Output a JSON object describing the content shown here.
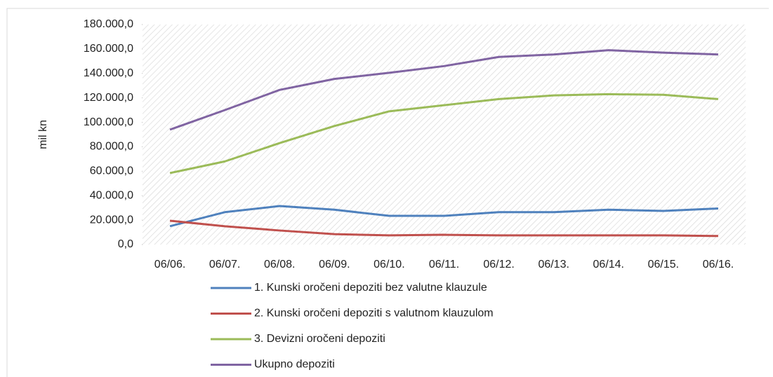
{
  "chart_data": {
    "type": "line",
    "y_label": "mil kn",
    "categories": [
      "06/06.",
      "06/07.",
      "06/08.",
      "06/09.",
      "06/10.",
      "06/11.",
      "06/12.",
      "06/13.",
      "06/14.",
      "06/15.",
      "06/16."
    ],
    "series": [
      {
        "name": "1. Kunski oročeni depoziti bez valutne klauzule",
        "color": "#4f81bd",
        "values": [
          15000,
          26500,
          31500,
          28500,
          23500,
          23500,
          26500,
          26500,
          28500,
          27500,
          29500
        ]
      },
      {
        "name": "2. Kunski oročeni depoziti s valutnom klauzulom",
        "color": "#c0504d",
        "values": [
          19500,
          15000,
          11500,
          8500,
          7500,
          8000,
          7500,
          7500,
          7500,
          7500,
          7000
        ]
      },
      {
        "name": "3. Devizni oročeni depoziti",
        "color": "#9bbb59",
        "values": [
          58500,
          68000,
          83000,
          97000,
          109000,
          114000,
          119000,
          122000,
          123000,
          122500,
          119000
        ]
      },
      {
        "name": "Ukupno depoziti",
        "color": "#8064a2",
        "values": [
          94000,
          110000,
          126500,
          135500,
          140500,
          146000,
          153500,
          155500,
          159000,
          157000,
          155500
        ]
      }
    ],
    "ylim": [
      0,
      180000
    ],
    "yticks": [
      {
        "value": 0,
        "label": "0,0"
      },
      {
        "value": 20000,
        "label": "20.000,0"
      },
      {
        "value": 40000,
        "label": "40.000,0"
      },
      {
        "value": 60000,
        "label": "60.000,0"
      },
      {
        "value": 80000,
        "label": "80.000,0"
      },
      {
        "value": 100000,
        "label": "100.000,0"
      },
      {
        "value": 120000,
        "label": "120.000,0"
      },
      {
        "value": 140000,
        "label": "140.000,0"
      },
      {
        "value": 160000,
        "label": "160.000,0"
      },
      {
        "value": 180000,
        "label": "180.000,0"
      }
    ],
    "legend": "bottom"
  }
}
